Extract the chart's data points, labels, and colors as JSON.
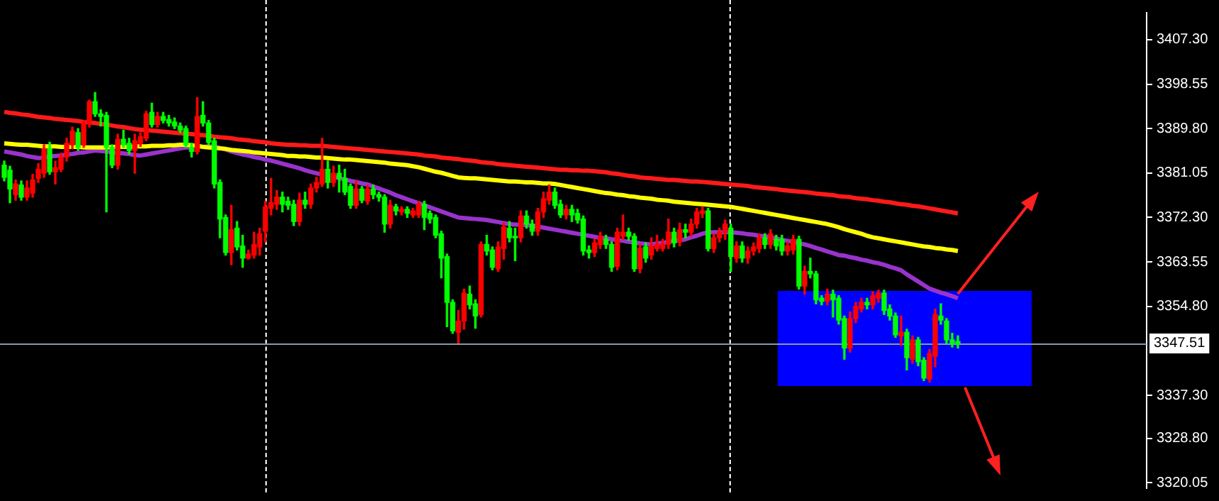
{
  "chart_data": {
    "type": "candlestick",
    "categories": [
      null,
      null,
      null,
      null,
      null,
      null,
      null,
      null,
      null,
      null,
      null,
      null,
      null,
      null,
      null,
      null,
      null,
      null,
      null,
      null,
      null,
      null,
      null,
      null,
      null,
      null,
      null,
      null,
      null,
      null,
      null,
      null,
      null,
      null,
      null,
      null,
      null,
      null,
      null,
      null,
      null,
      null,
      null,
      null,
      null,
      null,
      null,
      null,
      null,
      null,
      null,
      null,
      null,
      null,
      null,
      null,
      null,
      null,
      null,
      null,
      null,
      null,
      null,
      null,
      null,
      null,
      null,
      null,
      null,
      null,
      null,
      null,
      null,
      null,
      null,
      null,
      null,
      null,
      null,
      null,
      null,
      null,
      null,
      null,
      null,
      null,
      null,
      null,
      null,
      null,
      null,
      null,
      null,
      null,
      null,
      null,
      null,
      null,
      null,
      null,
      null,
      null,
      null,
      null,
      null,
      null,
      null,
      null,
      null,
      null,
      null,
      null,
      null,
      null,
      null,
      null,
      null,
      null,
      null,
      null,
      null,
      null,
      null,
      null,
      null,
      null,
      null,
      null,
      null,
      null,
      null,
      null,
      null,
      null,
      null,
      null,
      null,
      null,
      null,
      null,
      null,
      null,
      null,
      null,
      null,
      null,
      null,
      null,
      null,
      null,
      null,
      null,
      null,
      null,
      null,
      null,
      null,
      null,
      null,
      null,
      null,
      null,
      null,
      null,
      null,
      null,
      null,
      null,
      null
    ],
    "ohlc": [
      [
        3382.6,
        3383.4,
        3379.5,
        3380.2
      ],
      [
        3381.6,
        3382.4,
        3375.2,
        3377.9
      ],
      [
        3376.8,
        3379.7,
        3375.7,
        3378.9
      ],
      [
        3378.7,
        3379.5,
        3375.7,
        3376.3
      ],
      [
        3376.3,
        3379.5,
        3375.7,
        3378.1
      ],
      [
        3377.1,
        3380.8,
        3376.3,
        3379.7
      ],
      [
        3380.0,
        3382.9,
        3379.2,
        3381.8
      ],
      [
        3381.0,
        3386.6,
        3380.2,
        3385.8
      ],
      [
        3385.8,
        3387.1,
        3380.8,
        3381.3
      ],
      [
        3381.3,
        3383.4,
        3378.9,
        3382.1
      ],
      [
        3381.8,
        3385.0,
        3381.3,
        3384.2
      ],
      [
        3384.2,
        3387.9,
        3383.4,
        3386.9
      ],
      [
        3386.6,
        3390.1,
        3385.8,
        3389.3
      ],
      [
        3389.0,
        3389.8,
        3385.5,
        3386.1
      ],
      [
        3386.6,
        3391.4,
        3386.1,
        3390.9
      ],
      [
        3390.9,
        3395.4,
        3390.1,
        3395.1
      ],
      [
        3395.1,
        3396.9,
        3392.2,
        3392.7
      ],
      [
        3392.7,
        3393.5,
        3390.3,
        3392.2
      ],
      [
        3392.4,
        3393.0,
        3373.4,
        3386.1
      ],
      [
        3386.1,
        3386.6,
        3382.1,
        3382.6
      ],
      [
        3382.6,
        3388.7,
        3381.8,
        3387.7
      ],
      [
        3387.7,
        3389.5,
        3386.1,
        3386.6
      ],
      [
        3386.9,
        3387.9,
        3384.8,
        3385.5
      ],
      [
        3385.5,
        3388.7,
        3381.0,
        3387.4
      ],
      [
        3386.9,
        3389.0,
        3386.3,
        3388.2
      ],
      [
        3387.9,
        3393.2,
        3387.4,
        3392.7
      ],
      [
        3393.0,
        3394.8,
        3390.1,
        3390.6
      ],
      [
        3390.6,
        3393.0,
        3390.1,
        3392.2
      ],
      [
        3392.2,
        3393.0,
        3390.9,
        3391.4
      ],
      [
        3391.6,
        3392.4,
        3390.3,
        3390.9
      ],
      [
        3391.1,
        3391.9,
        3389.8,
        3390.3
      ],
      [
        3390.3,
        3390.9,
        3389.0,
        3389.5
      ],
      [
        3389.8,
        3390.3,
        3386.1,
        3386.6
      ],
      [
        3386.1,
        3386.9,
        3384.2,
        3385.3
      ],
      [
        3385.3,
        3395.9,
        3384.8,
        3392.2
      ],
      [
        3392.4,
        3395.1,
        3390.3,
        3390.9
      ],
      [
        3390.9,
        3391.4,
        3386.6,
        3387.1
      ],
      [
        3387.4,
        3387.9,
        3378.1,
        3378.9
      ],
      [
        3379.2,
        3379.7,
        3368.3,
        3372.0
      ],
      [
        3372.3,
        3372.8,
        3364.9,
        3365.4
      ],
      [
        3365.4,
        3374.7,
        3363.0,
        3369.9
      ],
      [
        3370.2,
        3371.5,
        3365.9,
        3366.5
      ],
      [
        3366.7,
        3368.8,
        3362.5,
        3364.3
      ],
      [
        3364.3,
        3365.9,
        3364.1,
        3365.1
      ],
      [
        3364.9,
        3369.4,
        3364.3,
        3367.0
      ],
      [
        3366.5,
        3370.2,
        3364.9,
        3369.1
      ],
      [
        3369.6,
        3375.5,
        3367.5,
        3374.4
      ],
      [
        3374.1,
        3380.0,
        3372.8,
        3375.2
      ],
      [
        3374.9,
        3377.6,
        3373.9,
        3376.3
      ],
      [
        3376.3,
        3377.3,
        3373.4,
        3374.9
      ],
      [
        3375.5,
        3376.3,
        3373.9,
        3374.7
      ],
      [
        3374.9,
        3375.7,
        3370.7,
        3371.5
      ],
      [
        3371.5,
        3377.1,
        3370.7,
        3375.7
      ],
      [
        3375.7,
        3377.3,
        3374.1,
        3374.9
      ],
      [
        3374.9,
        3378.9,
        3374.1,
        3378.1
      ],
      [
        3378.1,
        3380.2,
        3377.3,
        3379.2
      ],
      [
        3378.9,
        3387.9,
        3378.4,
        3381.8
      ],
      [
        3381.8,
        3383.4,
        3378.1,
        3379.2
      ],
      [
        3379.2,
        3382.4,
        3378.4,
        3381.0
      ],
      [
        3381.0,
        3382.6,
        3377.3,
        3380.0
      ],
      [
        3380.0,
        3381.8,
        3376.8,
        3377.3
      ],
      [
        3378.4,
        3378.9,
        3374.1,
        3374.7
      ],
      [
        3374.7,
        3379.5,
        3374.1,
        3377.9
      ],
      [
        3377.9,
        3378.4,
        3375.2,
        3375.7
      ],
      [
        3375.5,
        3378.7,
        3374.9,
        3377.9
      ],
      [
        3377.9,
        3378.7,
        3376.0,
        3376.8
      ],
      [
        3376.8,
        3377.3,
        3375.5,
        3376.3
      ],
      [
        3376.3,
        3376.8,
        3369.4,
        3371.0
      ],
      [
        3371.0,
        3375.7,
        3370.2,
        3374.7
      ],
      [
        3374.4,
        3374.9,
        3372.8,
        3373.6
      ],
      [
        3373.4,
        3374.4,
        3372.8,
        3373.9
      ],
      [
        3373.9,
        3374.4,
        3372.3,
        3373.1
      ],
      [
        3372.8,
        3374.1,
        3372.3,
        3373.6
      ],
      [
        3372.8,
        3375.5,
        3372.3,
        3374.9
      ],
      [
        3374.9,
        3375.5,
        3369.9,
        3372.3
      ],
      [
        3373.1,
        3373.6,
        3371.2,
        3372.0
      ],
      [
        3372.3,
        3372.8,
        3368.3,
        3368.8
      ],
      [
        3369.1,
        3369.6,
        3360.4,
        3364.3
      ],
      [
        3364.6,
        3365.1,
        3350.8,
        3355.6
      ],
      [
        3355.6,
        3356.1,
        3349.5,
        3350.0
      ],
      [
        3349.7,
        3354.0,
        3347.6,
        3351.9
      ],
      [
        3351.9,
        3358.2,
        3350.3,
        3357.4
      ],
      [
        3357.2,
        3358.8,
        3354.3,
        3355.1
      ],
      [
        3355.3,
        3356.1,
        3350.5,
        3352.9
      ],
      [
        3353.2,
        3367.5,
        3352.7,
        3367.0
      ],
      [
        3367.0,
        3368.8,
        3364.9,
        3365.7
      ],
      [
        3365.9,
        3366.5,
        3362.0,
        3362.5
      ],
      [
        3362.2,
        3367.5,
        3361.7,
        3366.5
      ],
      [
        3366.2,
        3371.2,
        3364.1,
        3370.4
      ],
      [
        3370.2,
        3371.5,
        3367.5,
        3368.3
      ],
      [
        3368.6,
        3370.2,
        3363.8,
        3368.3
      ],
      [
        3368.3,
        3373.6,
        3367.5,
        3372.6
      ],
      [
        3372.6,
        3373.6,
        3370.2,
        3371.0
      ],
      [
        3371.0,
        3371.8,
        3368.8,
        3369.6
      ],
      [
        3369.6,
        3374.1,
        3368.8,
        3373.4
      ],
      [
        3373.4,
        3377.3,
        3372.3,
        3376.0
      ],
      [
        3375.7,
        3378.7,
        3374.9,
        3377.3
      ],
      [
        3377.3,
        3378.1,
        3374.1,
        3374.7
      ],
      [
        3374.9,
        3375.7,
        3372.3,
        3372.8
      ],
      [
        3372.8,
        3374.7,
        3372.0,
        3373.9
      ],
      [
        3373.9,
        3374.7,
        3371.5,
        3372.8
      ],
      [
        3373.1,
        3373.9,
        3371.2,
        3371.8
      ],
      [
        3372.0,
        3372.6,
        3364.9,
        3365.7
      ],
      [
        3365.9,
        3366.7,
        3364.3,
        3365.4
      ],
      [
        3365.4,
        3368.0,
        3364.6,
        3367.3
      ],
      [
        3367.0,
        3369.4,
        3366.2,
        3368.6
      ],
      [
        3368.0,
        3368.8,
        3366.2,
        3367.0
      ],
      [
        3367.0,
        3367.5,
        3361.7,
        3362.5
      ],
      [
        3362.7,
        3370.2,
        3362.0,
        3369.4
      ],
      [
        3368.6,
        3372.8,
        3368.0,
        3369.4
      ],
      [
        3369.4,
        3370.2,
        3367.8,
        3368.6
      ],
      [
        3368.6,
        3369.1,
        3361.7,
        3362.2
      ],
      [
        3362.2,
        3367.0,
        3361.4,
        3366.2
      ],
      [
        3366.5,
        3367.3,
        3363.5,
        3364.3
      ],
      [
        3364.9,
        3368.3,
        3364.1,
        3366.7
      ],
      [
        3366.2,
        3368.8,
        3365.7,
        3367.0
      ],
      [
        3366.2,
        3368.0,
        3365.7,
        3367.0
      ],
      [
        3367.0,
        3372.0,
        3366.2,
        3369.4
      ],
      [
        3369.4,
        3370.2,
        3366.5,
        3367.3
      ],
      [
        3367.5,
        3371.2,
        3366.7,
        3369.9
      ],
      [
        3369.9,
        3371.0,
        3368.3,
        3369.4
      ],
      [
        3369.4,
        3372.0,
        3368.6,
        3371.0
      ],
      [
        3371.0,
        3374.1,
        3370.2,
        3373.4
      ],
      [
        3373.1,
        3374.4,
        3372.3,
        3373.6
      ],
      [
        3373.6,
        3374.1,
        3365.7,
        3366.2
      ],
      [
        3366.2,
        3369.1,
        3365.4,
        3368.3
      ],
      [
        3368.3,
        3370.2,
        3367.5,
        3369.4
      ],
      [
        3369.4,
        3371.8,
        3368.0,
        3371.0
      ],
      [
        3370.2,
        3371.0,
        3361.7,
        3364.6
      ],
      [
        3364.3,
        3367.5,
        3363.5,
        3366.7
      ],
      [
        3366.7,
        3367.5,
        3363.5,
        3364.3
      ],
      [
        3364.3,
        3366.5,
        3363.3,
        3365.7
      ],
      [
        3365.7,
        3367.3,
        3364.9,
        3366.5
      ],
      [
        3366.2,
        3369.1,
        3365.4,
        3368.3
      ],
      [
        3368.3,
        3369.1,
        3366.2,
        3367.0
      ],
      [
        3367.0,
        3369.9,
        3366.2,
        3369.1
      ],
      [
        3368.0,
        3368.8,
        3365.9,
        3366.7
      ],
      [
        3368.0,
        3368.8,
        3364.9,
        3365.7
      ],
      [
        3365.7,
        3367.5,
        3364.9,
        3366.7
      ],
      [
        3365.9,
        3368.8,
        3365.1,
        3368.0
      ],
      [
        3368.0,
        3368.6,
        3358.2,
        3358.8
      ],
      [
        3358.8,
        3362.7,
        3357.2,
        3361.7
      ],
      [
        3361.7,
        3364.3,
        3360.4,
        3361.2
      ],
      [
        3361.2,
        3361.7,
        3355.3,
        3356.1
      ],
      [
        3356.4,
        3356.9,
        3355.1,
        3355.8
      ],
      [
        3355.8,
        3358.2,
        3355.1,
        3357.2
      ],
      [
        3357.2,
        3358.0,
        3352.7,
        3356.1
      ],
      [
        3356.4,
        3356.9,
        3351.3,
        3352.1
      ],
      [
        3352.4,
        3352.9,
        3344.4,
        3346.6
      ],
      [
        3346.6,
        3353.7,
        3345.8,
        3352.4
      ],
      [
        3352.4,
        3355.6,
        3351.6,
        3354.8
      ],
      [
        3354.3,
        3356.4,
        3353.7,
        3355.6
      ],
      [
        3355.6,
        3356.4,
        3354.3,
        3355.1
      ],
      [
        3355.1,
        3357.7,
        3354.3,
        3356.9
      ],
      [
        3356.4,
        3358.0,
        3355.6,
        3357.4
      ],
      [
        3357.4,
        3358.0,
        3353.2,
        3354.0
      ],
      [
        3354.3,
        3355.1,
        3352.1,
        3352.9
      ],
      [
        3352.9,
        3353.5,
        3348.7,
        3349.2
      ],
      [
        3349.0,
        3352.9,
        3347.1,
        3349.7
      ],
      [
        3349.7,
        3350.3,
        3342.3,
        3344.7
      ],
      [
        3344.4,
        3349.0,
        3343.6,
        3348.2
      ],
      [
        3348.2,
        3348.7,
        3343.1,
        3343.9
      ],
      [
        3344.2,
        3344.7,
        3340.2,
        3340.7
      ],
      [
        3340.5,
        3346.3,
        3339.9,
        3345.5
      ],
      [
        3345.0,
        3354.3,
        3342.9,
        3353.2
      ],
      [
        3352.9,
        3355.3,
        3351.3,
        3352.1
      ],
      [
        3351.9,
        3352.4,
        3347.4,
        3348.2
      ],
      [
        3348.2,
        3349.5,
        3346.8,
        3347.6
      ],
      [
        3347.9,
        3349.0,
        3346.6,
        3347.51
      ]
    ],
    "colors": [
      "#00ff00",
      "#00ff00",
      "#ff0000",
      "#00ff00",
      "#ff0000",
      "#ff0000",
      "#ff0000",
      "#ff0000",
      "#00ff00",
      "#ff0000",
      "#ff0000",
      "#ff0000",
      "#ff0000",
      "#00ff00",
      "#ff0000",
      "#ff0000",
      "#00ff00",
      "#00ff00",
      "#00ff00",
      "#00ff00",
      "#ff0000",
      "#00ff00",
      "#00ff00",
      "#ff0000",
      "#ff0000",
      "#ff0000",
      "#00ff00",
      "#ff0000",
      "#00ff00",
      "#00ff00",
      "#00ff00",
      "#00ff00",
      "#00ff00",
      "#00ff00",
      "#ff0000",
      "#00ff00",
      "#00ff00",
      "#00ff00",
      "#00ff00",
      "#00ff00",
      "#ff0000",
      "#00ff00",
      "#00ff00",
      "#ff0000",
      "#ff0000",
      "#ff0000",
      "#ff0000",
      "#ff0000",
      "#ff0000",
      "#00ff00",
      "#00ff00",
      "#00ff00",
      "#ff0000",
      "#00ff00",
      "#ff0000",
      "#ff0000",
      "#ff0000",
      "#00ff00",
      "#ff0000",
      "#00ff00",
      "#00ff00",
      "#00ff00",
      "#ff0000",
      "#00ff00",
      "#ff0000",
      "#00ff00",
      "#00ff00",
      "#00ff00",
      "#ff0000",
      "#00ff00",
      "#ff0000",
      "#00ff00",
      "#ff0000",
      "#ff0000",
      "#00ff00",
      "#00ff00",
      "#00ff00",
      "#00ff00",
      "#00ff00",
      "#00ff00",
      "#ff0000",
      "#ff0000",
      "#00ff00",
      "#00ff00",
      "#ff0000",
      "#00ff00",
      "#00ff00",
      "#ff0000",
      "#ff0000",
      "#00ff00",
      "#00ff00",
      "#ff0000",
      "#00ff00",
      "#00ff00",
      "#ff0000",
      "#ff0000",
      "#ff0000",
      "#00ff00",
      "#00ff00",
      "#ff0000",
      "#00ff00",
      "#00ff00",
      "#00ff00",
      "#00ff00",
      "#ff0000",
      "#ff0000",
      "#00ff00",
      "#00ff00",
      "#ff0000",
      "#ff0000",
      "#00ff00",
      "#00ff00",
      "#ff0000",
      "#00ff00",
      "#ff0000",
      "#ff0000",
      "#ff0000",
      "#ff0000",
      "#00ff00",
      "#ff0000",
      "#00ff00",
      "#ff0000",
      "#ff0000",
      "#ff0000",
      "#00ff00",
      "#ff0000",
      "#ff0000",
      "#ff0000",
      "#00ff00",
      "#ff0000",
      "#00ff00",
      "#ff0000",
      "#ff0000",
      "#ff0000",
      "#00ff00",
      "#ff0000",
      "#00ff00",
      "#00ff00",
      "#ff0000",
      "#ff0000",
      "#00ff00",
      "#ff0000",
      "#00ff00",
      "#00ff00",
      "#00ff00",
      "#ff0000",
      "#00ff00",
      "#00ff00",
      "#00ff00",
      "#ff0000",
      "#ff0000",
      "#ff0000",
      "#00ff00",
      "#ff0000",
      "#ff0000",
      "#00ff00",
      "#00ff00",
      "#00ff00",
      "#ff0000",
      "#00ff00",
      "#ff0000",
      "#00ff00",
      "#00ff00",
      "#ff0000",
      "#ff0000",
      "#00ff00",
      "#00ff00",
      "#00ff00",
      "#00ff00"
    ],
    "series": [
      {
        "type": "line",
        "color": "#ff1a1a",
        "values": [
          3393.1,
          3392.9,
          3392.8,
          3392.6,
          3392.5,
          3392.3,
          3392.1,
          3392.0,
          3391.9,
          3391.7,
          3391.6,
          3391.5,
          3391.4,
          3391.3,
          3391.1,
          3391.0,
          3390.9,
          3390.7,
          3390.6,
          3390.4,
          3390.2,
          3390.1,
          3389.9,
          3389.7,
          3389.6,
          3389.5,
          3389.4,
          3389.3,
          3389.2,
          3389.1,
          3389.0,
          3388.9,
          3388.8,
          3388.7,
          3388.6,
          3388.5,
          3388.4,
          3388.2,
          3388.1,
          3388.0,
          3387.9,
          3387.7,
          3387.6,
          3387.5,
          3387.3,
          3387.2,
          3387.1,
          3386.9,
          3386.8,
          3386.7,
          3386.6,
          3386.6,
          3386.5,
          3386.5,
          3386.4,
          3386.4,
          3386.4,
          3386.3,
          3386.2,
          3386.1,
          3386.0,
          3385.9,
          3385.8,
          3385.7,
          3385.6,
          3385.5,
          3385.4,
          3385.3,
          3385.2,
          3385.1,
          3385.0,
          3384.9,
          3384.8,
          3384.7,
          3384.5,
          3384.4,
          3384.3,
          3384.1,
          3384.0,
          3383.9,
          3383.8,
          3383.6,
          3383.5,
          3383.4,
          3383.2,
          3383.1,
          3383.0,
          3382.8,
          3382.7,
          3382.6,
          3382.5,
          3382.4,
          3382.3,
          3382.2,
          3382.1,
          3382.0,
          3381.9,
          3381.8,
          3381.7,
          3381.7,
          3381.6,
          3381.6,
          3381.5,
          3381.5,
          3381.4,
          3381.3,
          3381.2,
          3381.0,
          3380.9,
          3380.7,
          3380.5,
          3380.4,
          3380.2,
          3380.1,
          3380.0,
          3379.9,
          3379.8,
          3379.7,
          3379.7,
          3379.6,
          3379.5,
          3379.4,
          3379.4,
          3379.3,
          3379.2,
          3379.1,
          3379.0,
          3378.9,
          3378.8,
          3378.7,
          3378.6,
          3378.5,
          3378.3,
          3378.2,
          3378.1,
          3378.0,
          3377.9,
          3377.7,
          3377.6,
          3377.5,
          3377.4,
          3377.3,
          3377.2,
          3377.0,
          3376.9,
          3376.8,
          3376.7,
          3376.5,
          3376.4,
          3376.3,
          3376.1,
          3376.0,
          3375.9,
          3375.7,
          3375.6,
          3375.4,
          3375.3,
          3375.1,
          3374.9,
          3374.8,
          3374.6,
          3374.5,
          3374.3,
          3374.1,
          3373.9,
          3373.7,
          3373.5,
          3373.3,
          3373.1
        ]
      },
      {
        "type": "line",
        "color": "#ffff00",
        "values": [
          3386.9,
          3386.8,
          3386.7,
          3386.6,
          3386.6,
          3386.5,
          3386.4,
          3386.3,
          3386.3,
          3386.3,
          3386.2,
          3386.2,
          3386.2,
          3386.2,
          3386.1,
          3386.1,
          3386.1,
          3386.1,
          3386.1,
          3386.2,
          3386.2,
          3386.2,
          3386.2,
          3386.3,
          3386.3,
          3386.3,
          3386.4,
          3386.4,
          3386.4,
          3386.5,
          3386.5,
          3386.6,
          3386.6,
          3386.5,
          3386.4,
          3386.2,
          3386.1,
          3386.0,
          3385.9,
          3385.8,
          3385.6,
          3385.5,
          3385.4,
          3385.3,
          3385.1,
          3385.0,
          3384.9,
          3384.8,
          3384.7,
          3384.6,
          3384.4,
          3384.4,
          3384.3,
          3384.3,
          3384.2,
          3384.1,
          3384.1,
          3384.0,
          3383.9,
          3383.8,
          3383.7,
          3383.7,
          3383.6,
          3383.5,
          3383.4,
          3383.3,
          3383.2,
          3383.1,
          3382.9,
          3382.8,
          3382.7,
          3382.6,
          3382.4,
          3382.2,
          3381.9,
          3381.6,
          3381.3,
          3381.1,
          3380.8,
          3380.5,
          3380.2,
          3380.1,
          3380.0,
          3380.0,
          3379.9,
          3379.8,
          3379.7,
          3379.6,
          3379.5,
          3379.4,
          3379.4,
          3379.3,
          3379.2,
          3379.2,
          3379.1,
          3379.0,
          3379.0,
          3378.9,
          3378.7,
          3378.5,
          3378.3,
          3378.1,
          3377.9,
          3377.7,
          3377.5,
          3377.3,
          3377.1,
          3377.0,
          3376.8,
          3376.7,
          3376.5,
          3376.4,
          3376.2,
          3376.1,
          3376.0,
          3375.8,
          3375.7,
          3375.6,
          3375.4,
          3375.3,
          3375.2,
          3375.1,
          3375.0,
          3374.9,
          3374.8,
          3374.7,
          3374.6,
          3374.5,
          3374.4,
          3374.2,
          3374.0,
          3373.8,
          3373.6,
          3373.4,
          3373.2,
          3373.0,
          3372.8,
          3372.6,
          3372.4,
          3372.2,
          3372.0,
          3371.8,
          3371.6,
          3371.4,
          3371.2,
          3371.0,
          3370.7,
          3370.4,
          3370.0,
          3369.7,
          3369.4,
          3369.1,
          3368.7,
          3368.4,
          3368.2,
          3368.0,
          3367.8,
          3367.6,
          3367.4,
          3367.2,
          3367.0,
          3366.8,
          3366.6,
          3366.5,
          3366.3,
          3366.2,
          3366.0,
          3365.9,
          3365.7
        ]
      },
      {
        "type": "line",
        "color": "#9933cc",
        "values": [
          3385.3,
          3385.1,
          3384.9,
          3384.7,
          3384.4,
          3384.2,
          3384.0,
          3384.1,
          3384.3,
          3384.4,
          3384.5,
          3384.7,
          3384.8,
          3385.0,
          3385.1,
          3385.3,
          3385.5,
          3385.4,
          3385.3,
          3385.1,
          3385.0,
          3384.9,
          3384.8,
          3384.6,
          3384.5,
          3384.7,
          3384.9,
          3385.1,
          3385.3,
          3385.5,
          3385.7,
          3385.9,
          3386.1,
          3386.1,
          null,
          3386.2,
          3386.3,
          3386.3,
          3386.0,
          3385.7,
          3385.3,
          3385.0,
          3384.7,
          3384.5,
          3384.2,
          3384.0,
          3383.7,
          3383.5,
          3383.2,
          3382.9,
          3382.6,
          3382.3,
          3382.0,
          3381.6,
          3381.3,
          3381.0,
          3380.8,
          null,
          3380.3,
          3380.0,
          3379.8,
          3379.5,
          3379.3,
          3379.0,
          3378.8,
          3378.4,
          3378.0,
          3377.6,
          3377.2,
          3376.7,
          3376.3,
          3375.9,
          3375.5,
          3375.1,
          3374.7,
          3374.3,
          3373.9,
          3373.5,
          3373.1,
          3372.7,
          3372.3,
          3372.2,
          3372.1,
          3372.0,
          3371.9,
          3371.8,
          3371.6,
          3371.4,
          3371.2,
          3371.0,
          3370.9,
          3370.9,
          3370.8,
          3370.7,
          3370.5,
          3370.3,
          3370.1,
          3369.9,
          3369.7,
          3369.5,
          3369.3,
          3369.1,
          3368.9,
          3368.7,
          3368.5,
          3368.3,
          3368.2,
          3368.0,
          3367.9,
          3367.7,
          3367.5,
          3367.4,
          3367.2,
          3367.1,
          3367.0,
          3367.2,
          3367.3,
          3367.5,
          3367.7,
          3367.8,
          3368.0,
          3368.4,
          3368.7,
          3369.1,
          3369.4,
          3369.4,
          3369.4,
          3369.4,
          3369.4,
          3369.3,
          3369.2,
          3369.0,
          3368.9,
          3368.7,
          3368.6,
          3368.4,
          3368.2,
          3367.9,
          3367.7,
          3367.5,
          3367.2,
          3367.0,
          3366.7,
          3366.3,
          3366.0,
          3365.6,
          3365.3,
          3364.9,
          3364.8,
          3364.5,
          3364.3,
          3364.0,
          3363.8,
          3363.5,
          3363.3,
          3363.0,
          3362.6,
          3362.3,
          3361.9,
          3361.1,
          3360.4,
          3359.7,
          3359.0,
          3358.3,
          3357.9,
          3357.5,
          3357.2,
          3356.8,
          3356.4
        ]
      }
    ],
    "ylim": [
      3319.0,
      3412.6
    ],
    "yticks": [
      {
        "value": 3407.3,
        "label": "3407.30"
      },
      {
        "value": 3398.55,
        "label": "3398.55"
      },
      {
        "value": 3389.8,
        "label": "3389.80"
      },
      {
        "value": 3381.05,
        "label": "3381.05"
      },
      {
        "value": 3372.3,
        "label": "3372.30"
      },
      {
        "value": 3363.55,
        "label": "3363.55"
      },
      {
        "value": 3354.8,
        "label": "3354.80"
      },
      {
        "value": 3337.3,
        "label": "3337.30"
      },
      {
        "value": 3328.8,
        "label": "3328.80"
      },
      {
        "value": 3320.05,
        "label": "3320.05"
      }
    ],
    "tick_labels": "y",
    "ref_lines": [
      {
        "axis": "y",
        "value": 3347.51,
        "label": "3347.51",
        "color": "#8899aa"
      }
    ],
    "grid": false,
    "legend": false
  }
}
